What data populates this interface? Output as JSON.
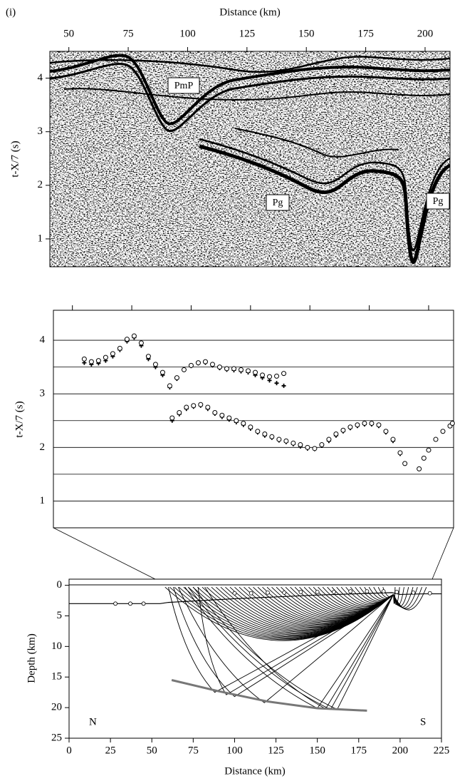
{
  "panel_label": "(i)",
  "chart_data": [
    {
      "type": "record_section",
      "x_label": "Distance (km)",
      "y_label": "t-X/7 (s)",
      "xlim": [
        42,
        210.5
      ],
      "xticks": [
        50,
        75,
        100,
        125,
        150,
        175,
        200
      ],
      "ylim": [
        0.48,
        4.5
      ],
      "yticks": [
        1,
        2,
        3,
        4
      ],
      "annotations": [
        "PmP",
        "Pg",
        "Pg"
      ]
    },
    {
      "type": "scatter",
      "y_label": "t-X/7 (s)",
      "xlim": [
        42,
        210.5
      ],
      "xticks": [
        50,
        75,
        100,
        125,
        150,
        175,
        200
      ],
      "ylim": [
        0.5,
        4.56
      ],
      "yticks": [
        1,
        2,
        3,
        4
      ],
      "minor_yticks": [
        1.5,
        2.5,
        3.5
      ],
      "grid": true,
      "series": [
        {
          "marker": "cross",
          "color": "#000000",
          "x": [
            55,
            58,
            61,
            64,
            67,
            70,
            73,
            76,
            79,
            82,
            85,
            88,
            91,
            94,
            97,
            100,
            103,
            106,
            109,
            112,
            115,
            118,
            121,
            124,
            127,
            130,
            133,
            136,
            139
          ],
          "values": [
            3.58,
            3.55,
            3.57,
            3.62,
            3.7,
            3.82,
            3.98,
            4.05,
            3.9,
            3.65,
            3.5,
            3.35,
            3.12,
            3.28,
            3.45,
            3.52,
            3.57,
            3.58,
            3.53,
            3.48,
            3.45,
            3.44,
            3.42,
            3.4,
            3.35,
            3.3,
            3.25,
            3.2,
            3.15
          ]
        },
        {
          "marker": "circle",
          "color": "#000000",
          "x": [
            55,
            58,
            61,
            64,
            67,
            70,
            73,
            76,
            79,
            82,
            85,
            88,
            91,
            94,
            97,
            100,
            103,
            106,
            109,
            112,
            115,
            118,
            121,
            124,
            127,
            130,
            133,
            136,
            139
          ],
          "values": [
            3.65,
            3.6,
            3.62,
            3.68,
            3.75,
            3.85,
            4.02,
            4.08,
            3.95,
            3.7,
            3.55,
            3.4,
            3.15,
            3.3,
            3.45,
            3.53,
            3.58,
            3.6,
            3.55,
            3.5,
            3.47,
            3.47,
            3.45,
            3.43,
            3.4,
            3.35,
            3.32,
            3.33,
            3.38
          ]
        },
        {
          "marker": "cross",
          "color": "#000000",
          "x": [
            92,
            95,
            98,
            101,
            104,
            107,
            110,
            113,
            116,
            119,
            122,
            125,
            128,
            131,
            134,
            137,
            140,
            143,
            146,
            149,
            152,
            155,
            158,
            161,
            164,
            167,
            170,
            173,
            176,
            179,
            182,
            185,
            188
          ],
          "values": [
            2.5,
            2.62,
            2.72,
            2.76,
            2.78,
            2.72,
            2.63,
            2.57,
            2.52,
            2.47,
            2.42,
            2.35,
            2.28,
            2.22,
            2.18,
            2.13,
            2.1,
            2.06,
            2.02,
            1.98,
            1.97,
            2.03,
            2.12,
            2.22,
            2.3,
            2.36,
            2.4,
            2.43,
            2.43,
            2.4,
            2.28,
            2.12,
            1.88
          ]
        },
        {
          "marker": "circle",
          "color": "#000000",
          "x": [
            92,
            95,
            98,
            101,
            104,
            107,
            110,
            113,
            116,
            119,
            122,
            125,
            128,
            131,
            134,
            137,
            140,
            143,
            146,
            149,
            152,
            155,
            158,
            161,
            164,
            167,
            170,
            173,
            176,
            179,
            182,
            185,
            188,
            190
          ],
          "values": [
            2.55,
            2.65,
            2.75,
            2.78,
            2.8,
            2.75,
            2.65,
            2.6,
            2.55,
            2.5,
            2.45,
            2.38,
            2.3,
            2.25,
            2.2,
            2.15,
            2.12,
            2.08,
            2.05,
            2.0,
            1.98,
            2.05,
            2.15,
            2.25,
            2.32,
            2.38,
            2.42,
            2.45,
            2.45,
            2.42,
            2.3,
            2.15,
            1.9,
            1.7
          ]
        },
        {
          "marker": "circle",
          "color": "#000000",
          "x": [
            196,
            198,
            200,
            203,
            206,
            209,
            210
          ],
          "values": [
            1.6,
            1.8,
            1.95,
            2.15,
            2.3,
            2.4,
            2.45
          ]
        }
      ]
    },
    {
      "type": "ray_model",
      "x_label": "Distance (km)",
      "y_label": "Depth (km)",
      "xlim": [
        0,
        225
      ],
      "xticks": [
        0,
        25,
        50,
        75,
        100,
        125,
        150,
        175,
        200,
        225
      ],
      "ylim": [
        -1,
        25
      ],
      "yticks": [
        0,
        5,
        10,
        15,
        20,
        25
      ],
      "y_inverted": true,
      "labels": [
        "N",
        "S"
      ],
      "series": [
        {
          "kind": "line",
          "color": "#000000",
          "x": [
            0,
            55,
            60,
            100,
            150,
            195,
            200,
            215,
            225
          ],
          "values": [
            3,
            3,
            2.8,
            2.2,
            1.6,
            1.2,
            1.5,
            1.4,
            1.4
          ]
        },
        {
          "kind": "line",
          "color": "#777777",
          "x": [
            62,
            90,
            120,
            150,
            180
          ],
          "values": [
            15.5,
            17.3,
            19.0,
            20.1,
            20.5
          ]
        },
        {
          "kind": "station",
          "color": "#000000",
          "x": [
            28,
            37,
            45
          ],
          "values": [
            3,
            3,
            3
          ]
        },
        {
          "kind": "station",
          "color": "#000000",
          "x": [
            100,
            110,
            120,
            130,
            140,
            150,
            160,
            170,
            180,
            190,
            198,
            208,
            218
          ],
          "values": [
            1.3,
            1.3,
            1.2,
            1.2,
            1.1,
            1.1,
            1.1,
            1.0,
            1.0,
            1.0,
            1.1,
            1.2,
            1.3
          ]
        }
      ]
    }
  ]
}
